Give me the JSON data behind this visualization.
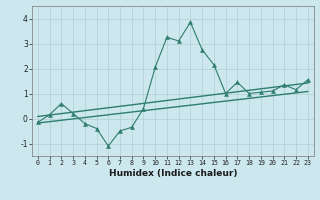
{
  "xlabel": "Humidex (Indice chaleur)",
  "ylabel": "",
  "bg_color": "#cce8ee",
  "line_color": "#2e7d6e",
  "grid_color": "#b0cfd5",
  "xlim": [
    -0.5,
    23.5
  ],
  "ylim": [
    -1.5,
    4.5
  ],
  "yticks": [
    -1,
    0,
    1,
    2,
    3,
    4
  ],
  "xticks": [
    0,
    1,
    2,
    3,
    4,
    5,
    6,
    7,
    8,
    9,
    10,
    11,
    12,
    13,
    14,
    15,
    16,
    17,
    18,
    19,
    20,
    21,
    22,
    23
  ],
  "main_line": [
    [
      0,
      -0.15
    ],
    [
      1,
      0.15
    ],
    [
      2,
      0.6
    ],
    [
      3,
      0.2
    ],
    [
      4,
      -0.2
    ],
    [
      5,
      -0.4
    ],
    [
      6,
      -1.1
    ],
    [
      7,
      -0.5
    ],
    [
      8,
      -0.35
    ],
    [
      9,
      0.4
    ],
    [
      10,
      2.05
    ],
    [
      11,
      3.25
    ],
    [
      12,
      3.1
    ],
    [
      13,
      3.85
    ],
    [
      14,
      2.75
    ],
    [
      15,
      2.15
    ],
    [
      16,
      1.0
    ],
    [
      17,
      1.45
    ],
    [
      18,
      1.0
    ],
    [
      19,
      1.05
    ],
    [
      20,
      1.1
    ],
    [
      21,
      1.35
    ],
    [
      22,
      1.15
    ],
    [
      23,
      1.55
    ]
  ],
  "upper_line_x": [
    0,
    23
  ],
  "upper_line_y": [
    0.08,
    1.42
  ],
  "lower_line_x": [
    0,
    23
  ],
  "lower_line_y": [
    -0.18,
    1.08
  ]
}
